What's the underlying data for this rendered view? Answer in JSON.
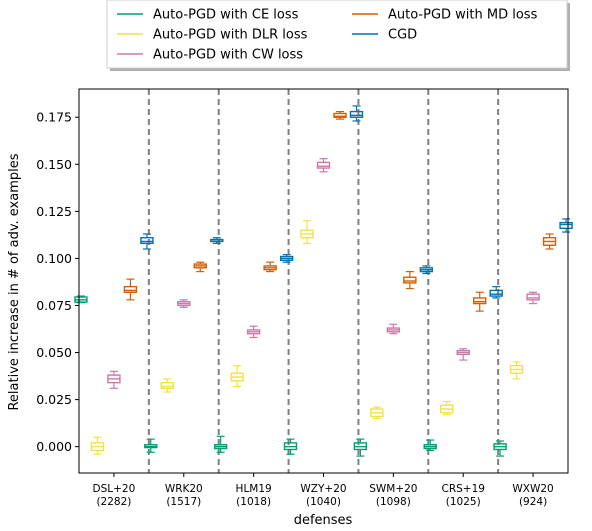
{
  "chart_data": {
    "type": "box",
    "xlabel": "defenses",
    "ylabel": "Relative increase in # of adv. examples",
    "ylim": [
      -0.014,
      0.19
    ],
    "yticks": [
      0.0,
      0.025,
      0.05,
      0.075,
      0.1,
      0.125,
      0.15,
      0.175
    ],
    "ytick_labels": [
      "0.000",
      "0.025",
      "0.050",
      "0.075",
      "0.100",
      "0.125",
      "0.150",
      "0.175"
    ],
    "categories": [
      {
        "name": "DSL+20",
        "count": "(2282)"
      },
      {
        "name": "WRK20",
        "count": "(1517)"
      },
      {
        "name": "HLM19",
        "count": "(1018)"
      },
      {
        "name": "WZY+20",
        "count": "(1040)"
      },
      {
        "name": "SWM+20",
        "count": "(1098)"
      },
      {
        "name": "CRS+19",
        "count": "(1025)"
      },
      {
        "name": "WXW20",
        "count": "(924)"
      }
    ],
    "legend_position": "top-center, outside plot",
    "grid": false,
    "series": [
      {
        "name": "Auto-PGD with CE loss",
        "color": "#009e73",
        "stats": [
          {
            "min": 0.0765,
            "q1": 0.0768,
            "median": 0.078,
            "q3": 0.0795,
            "max": 0.08
          },
          {
            "min": -0.003,
            "q1": -0.0005,
            "median": 0.0,
            "q3": 0.001,
            "max": 0.004
          },
          {
            "min": -0.003,
            "q1": -0.001,
            "median": 0.0,
            "q3": 0.001,
            "max": 0.0055
          },
          {
            "min": -0.004,
            "q1": -0.0015,
            "median": 0.0,
            "q3": 0.002,
            "max": 0.004
          },
          {
            "min": -0.005,
            "q1": -0.0015,
            "median": 0.0,
            "q3": 0.002,
            "max": 0.004
          },
          {
            "min": -0.002,
            "q1": -0.001,
            "median": 0.0,
            "q3": 0.001,
            "max": 0.0035
          },
          {
            "min": -0.005,
            "q1": -0.0015,
            "median": 0.0,
            "q3": 0.0015,
            "max": 0.003
          }
        ]
      },
      {
        "name": "Auto-PGD with DLR loss",
        "color": "#f0e442",
        "stats": [
          {
            "min": -0.004,
            "q1": -0.002,
            "median": 0.0,
            "q3": 0.002,
            "max": 0.005
          },
          {
            "min": 0.029,
            "q1": 0.031,
            "median": 0.032,
            "q3": 0.034,
            "max": 0.036
          },
          {
            "min": 0.032,
            "q1": 0.035,
            "median": 0.037,
            "q3": 0.039,
            "max": 0.043
          },
          {
            "min": 0.108,
            "q1": 0.111,
            "median": 0.113,
            "q3": 0.115,
            "max": 0.12
          },
          {
            "min": 0.015,
            "q1": 0.016,
            "median": 0.018,
            "q3": 0.02,
            "max": 0.021
          },
          {
            "min": 0.017,
            "q1": 0.018,
            "median": 0.02,
            "q3": 0.022,
            "max": 0.024
          },
          {
            "min": 0.036,
            "q1": 0.039,
            "median": 0.041,
            "q3": 0.043,
            "max": 0.045
          }
        ]
      },
      {
        "name": "Auto-PGD with CW loss",
        "color": "#cc79a7",
        "stats": [
          {
            "min": 0.031,
            "q1": 0.034,
            "median": 0.036,
            "q3": 0.038,
            "max": 0.04
          },
          {
            "min": 0.074,
            "q1": 0.075,
            "median": 0.076,
            "q3": 0.077,
            "max": 0.078
          },
          {
            "min": 0.058,
            "q1": 0.06,
            "median": 0.061,
            "q3": 0.062,
            "max": 0.064
          },
          {
            "min": 0.146,
            "q1": 0.148,
            "median": 0.149,
            "q3": 0.151,
            "max": 0.153
          },
          {
            "min": 0.06,
            "q1": 0.061,
            "median": 0.062,
            "q3": 0.063,
            "max": 0.065
          },
          {
            "min": 0.046,
            "q1": 0.049,
            "median": 0.05,
            "q3": 0.051,
            "max": 0.052
          },
          {
            "min": 0.076,
            "q1": 0.078,
            "median": 0.079,
            "q3": 0.081,
            "max": 0.082
          }
        ]
      },
      {
        "name": "Auto-PGD with MD loss",
        "color": "#d55e00",
        "stats": [
          {
            "min": 0.078,
            "q1": 0.082,
            "median": 0.083,
            "q3": 0.085,
            "max": 0.089
          },
          {
            "min": 0.093,
            "q1": 0.095,
            "median": 0.096,
            "q3": 0.097,
            "max": 0.098
          },
          {
            "min": 0.093,
            "q1": 0.094,
            "median": 0.095,
            "q3": 0.096,
            "max": 0.098
          },
          {
            "min": 0.174,
            "q1": 0.175,
            "median": 0.1755,
            "q3": 0.177,
            "max": 0.178
          },
          {
            "min": 0.084,
            "q1": 0.087,
            "median": 0.088,
            "q3": 0.09,
            "max": 0.093
          },
          {
            "min": 0.072,
            "q1": 0.076,
            "median": 0.077,
            "q3": 0.079,
            "max": 0.082
          },
          {
            "min": 0.105,
            "q1": 0.107,
            "median": 0.109,
            "q3": 0.111,
            "max": 0.113
          }
        ]
      },
      {
        "name": "CGD",
        "color": "#0072b2",
        "stats": [
          {
            "min": 0.105,
            "q1": 0.108,
            "median": 0.109,
            "q3": 0.111,
            "max": 0.113
          },
          {
            "min": 0.108,
            "q1": 0.109,
            "median": 0.11,
            "q3": 0.11,
            "max": 0.111
          },
          {
            "min": 0.098,
            "q1": 0.099,
            "median": 0.1,
            "q3": 0.101,
            "max": 0.102
          },
          {
            "min": 0.173,
            "q1": 0.175,
            "median": 0.176,
            "q3": 0.178,
            "max": 0.181
          },
          {
            "min": 0.092,
            "q1": 0.093,
            "median": 0.094,
            "q3": 0.095,
            "max": 0.096
          },
          {
            "min": 0.079,
            "q1": 0.08,
            "median": 0.081,
            "q3": 0.083,
            "max": 0.085
          },
          {
            "min": 0.114,
            "q1": 0.116,
            "median": 0.118,
            "q3": 0.119,
            "max": 0.121
          }
        ]
      }
    ]
  }
}
